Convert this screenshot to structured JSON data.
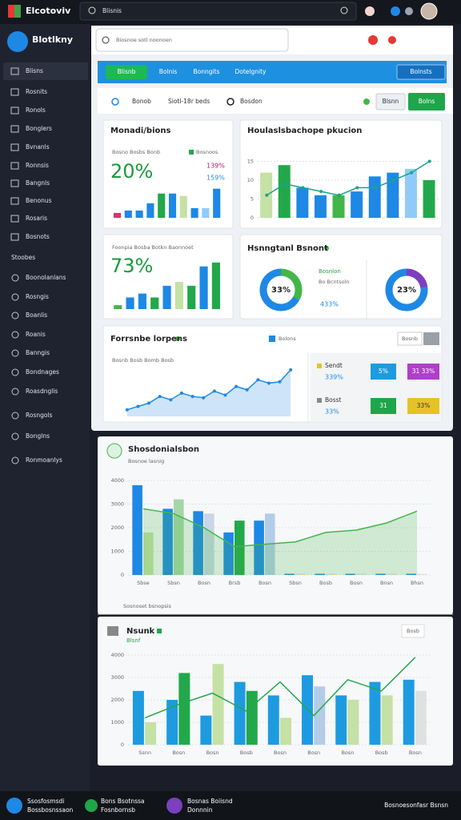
{
  "topbar": {
    "brand": "Elcotoviv",
    "search": "Blisnis"
  },
  "sidebar": {
    "brand": "Blotlkny",
    "items": [
      "Blisns",
      "Rosnits",
      "Ronols",
      "Bonglers",
      "Bvnanls",
      "Ronnsis",
      "Bangnls",
      "Benonus",
      "Rosaris",
      "Bosnots"
    ],
    "section": "Stoobes",
    "items2": [
      "Boonolanlans",
      "Rosngis",
      "Boanlis",
      "Roanis",
      "Banngis",
      "Bondnages",
      "Roasdnglis",
      "Rosngols",
      "Bonglns",
      "Ronmoanlys"
    ]
  },
  "browser": {
    "search": "Biosnoe sotl noonoen"
  },
  "tabs": {
    "items": [
      "Blisnb",
      "Bolnis",
      "Bonngits",
      "Dotelgnity"
    ],
    "button": "Bolnsts"
  },
  "filters": {
    "items": [
      "Bonob",
      "Siotl-18r beds",
      "Bosdon"
    ],
    "button1": "Blsnn",
    "button2": "Bolns"
  },
  "charts": [
    {
      "type": "bar",
      "title": "Monadi/bions",
      "kpi": "20%",
      "legend": [
        "Bosno Bosbs Bonb",
        "Bosnoos",
        "139%",
        "159%"
      ],
      "series": [
        {
          "colors": [
            "#d6336c",
            "#1e88e5",
            "#1e88e5",
            "#1e88e5",
            "#22a84a",
            "#1e88e5",
            "#c5e1a5",
            "#1e88e5",
            "#90caf9",
            "#1e88e5"
          ],
          "values": [
            2,
            3,
            3,
            6,
            10,
            10,
            9,
            4,
            4,
            12
          ]
        }
      ]
    },
    {
      "type": "bar",
      "title": "Houlaslsbachope pkucion",
      "ylim": [
        0,
        20
      ],
      "yticks": [
        0,
        5,
        10,
        15
      ],
      "grid": true,
      "series": [
        {
          "type": "bar",
          "colors": [
            "#c5e1a5",
            "#22a84a",
            "#1e88e5",
            "#1e88e5",
            "#43b649",
            "#1e88e5",
            "#1e88e5",
            "#1e88e5",
            "#90caf9",
            "#22a84a"
          ],
          "values": [
            12,
            14,
            8,
            6,
            6,
            7,
            11,
            12,
            13,
            10
          ]
        },
        {
          "type": "line",
          "color": "#17a589",
          "values": [
            6,
            9,
            8,
            7,
            6,
            8,
            8,
            10,
            12,
            15
          ],
          "markers": true
        }
      ]
    },
    {
      "type": "bar",
      "subtitle": "Foonpia Bosba Botkn Baonnoet",
      "kpi": "73%",
      "series": [
        {
          "colors": [
            "#43b649",
            "#1e88e5",
            "#1e88e5",
            "#22a84a",
            "#1e88e5",
            "#c5e1a5",
            "#22a84a",
            "#1e88e5",
            "#22a84a"
          ],
          "values": [
            1,
            3,
            4,
            3,
            6,
            7,
            6,
            11,
            12
          ]
        }
      ]
    },
    {
      "type": "donut",
      "title": "Hsnngtanl Bsnont",
      "legend": [
        "Bosnlon",
        "Bo Bcntsoln",
        "433%"
      ],
      "donuts": [
        {
          "label": "33%",
          "values": [
            33,
            67
          ],
          "colors": [
            "#43b649",
            "#1e88e5"
          ]
        },
        {
          "label": "23%",
          "values": [
            23,
            77
          ],
          "colors": [
            "#7b3fbf",
            "#1e88e5"
          ]
        }
      ]
    },
    {
      "type": "area",
      "title": "Forrsnbe lorpens",
      "subtitle": "Bosnb Bosb Bomb Bosb",
      "legend": [
        "Bolons",
        "Bosnb"
      ],
      "series": [
        {
          "color": "#1e88e5",
          "markers": true,
          "values": [
            10,
            15,
            20,
            30,
            25,
            35,
            30,
            28,
            38,
            32,
            45,
            40,
            55,
            50,
            52,
            70
          ]
        }
      ]
    },
    {
      "type": "bar",
      "title": "Shosdonialsbon",
      "subtitle": "Bosnoe lasnig",
      "note": "Sosnoset bsnopsis",
      "ylim": [
        0,
        4000
      ],
      "yticks": [
        0,
        1000,
        2000,
        3000,
        4000
      ],
      "grid": true,
      "categories": [
        "Sbse",
        "Sbsn",
        "Bosn",
        "Brsb",
        "Bosn",
        "Sbsn",
        "Bosb",
        "Bosn",
        "Bnsn",
        "Bhsn"
      ],
      "series": [
        {
          "type": "bar",
          "color": "#1e88e5",
          "values": [
            3800,
            2800,
            2700,
            1800,
            2300,
            50,
            50,
            50,
            50,
            50
          ]
        },
        {
          "type": "bar",
          "colors": [
            "#c5e1a5",
            "#a5d6a7",
            "#c8d6e5",
            "#22a84a",
            "#b3cde8",
            "#e0e0e0",
            "#e0e0e0",
            "#e0e0e0",
            "#e0e0e0",
            "#e0e0e0"
          ],
          "values": [
            1800,
            3200,
            2600,
            2300,
            2600,
            50,
            50,
            50,
            50,
            50
          ]
        },
        {
          "type": "area",
          "color": "#43b649",
          "values": [
            2800,
            2600,
            2000,
            1200,
            1300,
            1400,
            1800,
            1900,
            2200,
            2700
          ]
        }
      ]
    },
    {
      "type": "bar",
      "title": "Nsunk",
      "subtitle": "Blsnf",
      "button": "Bosb",
      "ylim": [
        0,
        4000
      ],
      "yticks": [
        0,
        1000,
        2000,
        3000,
        4000
      ],
      "grid": true,
      "categories": [
        "Ssnn",
        "Bosn",
        "Bosn",
        "Bosb",
        "Bosn",
        "Bosn",
        "Bosn",
        "Bosb",
        "Bosn"
      ],
      "series": [
        {
          "type": "bar",
          "color": "#1e9be0",
          "values": [
            2400,
            2000,
            1300,
            2800,
            2200,
            3100,
            2200,
            2800,
            2900
          ]
        },
        {
          "type": "bar",
          "colors": [
            "#c5e1a5",
            "#22a84a",
            "#c5e1a5",
            "#22a84a",
            "#c5e1a5",
            "#b3cde8",
            "#c5e1a5",
            "#c5e1a5",
            "#e0e0e0"
          ],
          "values": [
            1000,
            3200,
            3600,
            2400,
            1200,
            2600,
            2000,
            2200,
            2400
          ]
        },
        {
          "type": "line",
          "color": "#22a84a",
          "values": [
            1200,
            1800,
            2300,
            1500,
            2800,
            1300,
            2900,
            2400,
            3900
          ]
        }
      ]
    }
  ],
  "stats": {
    "rows": [
      {
        "label": "Sendt",
        "value": "339%",
        "badges": [
          "5%",
          "31 33%"
        ]
      },
      {
        "label": "Bosst",
        "value": "33%",
        "badges": [
          "31",
          "33%"
        ]
      }
    ]
  },
  "bottom": {
    "items": [
      {
        "title": "Ssosfosmsdi",
        "sub": "Bossbosnssaon"
      },
      {
        "title": "Bons Bsotnssa",
        "sub": "Fosnbornsb"
      },
      {
        "title": "Bosnas Boiisnd",
        "sub": "Donnnin"
      }
    ],
    "right": "Bosnoesonfasr Bsnsn"
  }
}
